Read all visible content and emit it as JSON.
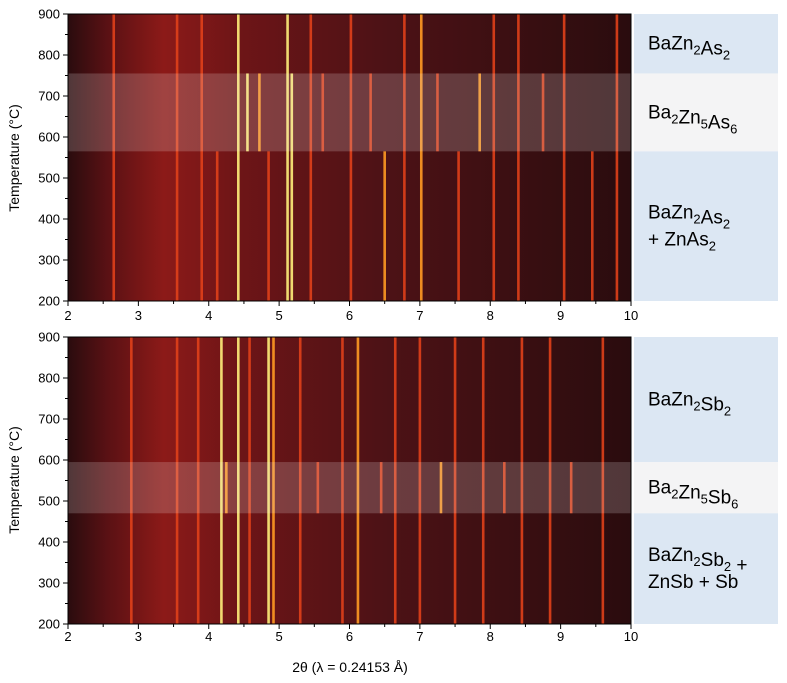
{
  "chart_data": [
    {
      "type": "heatmap",
      "xlabel": "",
      "ylabel": "Temperature (°C)",
      "xlim": [
        2,
        10
      ],
      "ylim": [
        200,
        900
      ],
      "x_ticks": [
        "2",
        "3",
        "4",
        "5",
        "6",
        "7",
        "8",
        "9",
        "10"
      ],
      "y_ticks": [
        "200",
        "300",
        "400",
        "500",
        "600",
        "700",
        "800",
        "900"
      ],
      "colormap": [
        "#2a0c0e",
        "#5a1114",
        "#9a1d14",
        "#e0401a",
        "#ff9a22",
        "#fff07a"
      ],
      "phase_regions": [
        {
          "phase_parts": [
            [
              "BaZn",
              ""
            ],
            [
              "2",
              "sub"
            ],
            [
              "As",
              ""
            ],
            [
              "2",
              "sub"
            ]
          ],
          "lines": 1,
          "t_range": [
            755,
            900
          ],
          "fill": "#dce7f3",
          "highlight": false
        },
        {
          "phase_parts": [
            [
              "Ba",
              ""
            ],
            [
              "2",
              "sub"
            ],
            [
              "Zn",
              ""
            ],
            [
              "5",
              "sub"
            ],
            [
              "As",
              ""
            ],
            [
              "6",
              "sub"
            ]
          ],
          "lines": 1,
          "t_range": [
            565,
            755
          ],
          "fill": "#f4f4f5",
          "highlight": true
        },
        {
          "phase_parts": [
            [
              "BaZn",
              ""
            ],
            [
              "2",
              "sub"
            ],
            [
              "As",
              ""
            ],
            [
              "2",
              "sub"
            ],
            [
              "\n",
              ""
            ],
            [
              "+ ZnAs",
              ""
            ],
            [
              "2",
              "sub"
            ]
          ],
          "lines": 2,
          "t_range": [
            200,
            565
          ],
          "fill": "#dce7f3",
          "highlight": false
        }
      ],
      "peaks": [
        {
          "x": 2.65,
          "t_range": [
            200,
            900
          ],
          "intensity": 0.35
        },
        {
          "x": 3.55,
          "t_range": [
            200,
            900
          ],
          "intensity": 0.3
        },
        {
          "x": 3.9,
          "t_range": [
            200,
            900
          ],
          "intensity": 0.35
        },
        {
          "x": 4.12,
          "t_range": [
            200,
            565
          ],
          "intensity": 0.4
        },
        {
          "x": 4.42,
          "t_range": [
            200,
            900
          ],
          "intensity": 1.0
        },
        {
          "x": 4.55,
          "t_range": [
            565,
            755
          ],
          "intensity": 0.85
        },
        {
          "x": 4.72,
          "t_range": [
            565,
            755
          ],
          "intensity": 0.8
        },
        {
          "x": 4.85,
          "t_range": [
            200,
            565
          ],
          "intensity": 0.45
        },
        {
          "x": 5.12,
          "t_range": [
            200,
            900
          ],
          "intensity": 0.95
        },
        {
          "x": 5.18,
          "t_range": [
            200,
            755
          ],
          "intensity": 0.85
        },
        {
          "x": 5.45,
          "t_range": [
            200,
            900
          ],
          "intensity": 0.35
        },
        {
          "x": 5.62,
          "t_range": [
            565,
            755
          ],
          "intensity": 0.4
        },
        {
          "x": 6.02,
          "t_range": [
            200,
            900
          ],
          "intensity": 0.45
        },
        {
          "x": 6.3,
          "t_range": [
            565,
            755
          ],
          "intensity": 0.4
        },
        {
          "x": 6.5,
          "t_range": [
            200,
            565
          ],
          "intensity": 0.55
        },
        {
          "x": 6.78,
          "t_range": [
            200,
            900
          ],
          "intensity": 0.4
        },
        {
          "x": 7.02,
          "t_range": [
            200,
            900
          ],
          "intensity": 0.5
        },
        {
          "x": 7.25,
          "t_range": [
            565,
            755
          ],
          "intensity": 0.45
        },
        {
          "x": 7.55,
          "t_range": [
            200,
            565
          ],
          "intensity": 0.4
        },
        {
          "x": 7.85,
          "t_range": [
            565,
            755
          ],
          "intensity": 0.6
        },
        {
          "x": 8.05,
          "t_range": [
            200,
            900
          ],
          "intensity": 0.4
        },
        {
          "x": 8.4,
          "t_range": [
            200,
            900
          ],
          "intensity": 0.35
        },
        {
          "x": 8.75,
          "t_range": [
            565,
            755
          ],
          "intensity": 0.35
        },
        {
          "x": 9.05,
          "t_range": [
            200,
            900
          ],
          "intensity": 0.35
        },
        {
          "x": 9.45,
          "t_range": [
            200,
            565
          ],
          "intensity": 0.3
        },
        {
          "x": 9.8,
          "t_range": [
            200,
            900
          ],
          "intensity": 0.3
        }
      ]
    },
    {
      "type": "heatmap",
      "xlabel": "2θ (λ = 0.24153 Å)",
      "ylabel": "Temperature (°C)",
      "xlim": [
        2,
        10
      ],
      "ylim": [
        200,
        900
      ],
      "x_ticks": [
        "2",
        "3",
        "4",
        "5",
        "6",
        "7",
        "8",
        "9",
        "10"
      ],
      "y_ticks": [
        "200",
        "300",
        "400",
        "500",
        "600",
        "700",
        "800",
        "900"
      ],
      "colormap": [
        "#2a0c0e",
        "#5a1114",
        "#9a1d14",
        "#e0401a",
        "#ff9a22",
        "#fff07a"
      ],
      "phase_regions": [
        {
          "phase_parts": [
            [
              "BaZn",
              ""
            ],
            [
              "2",
              "sub"
            ],
            [
              "Sb",
              ""
            ],
            [
              "2",
              "sub"
            ]
          ],
          "lines": 1,
          "t_range": [
            595,
            900
          ],
          "fill": "#dce7f3",
          "highlight": false
        },
        {
          "phase_parts": [
            [
              "Ba",
              ""
            ],
            [
              "2",
              "sub"
            ],
            [
              "Zn",
              ""
            ],
            [
              "5",
              "sub"
            ],
            [
              "Sb",
              ""
            ],
            [
              "6",
              "sub"
            ]
          ],
          "lines": 1,
          "t_range": [
            470,
            595
          ],
          "fill": "#f4f4f5",
          "highlight": true
        },
        {
          "phase_parts": [
            [
              "BaZn",
              ""
            ],
            [
              "2",
              "sub"
            ],
            [
              "Sb",
              ""
            ],
            [
              "2",
              "sub"
            ],
            [
              " +",
              ""
            ],
            [
              "\n",
              ""
            ],
            [
              "ZnSb + Sb",
              ""
            ]
          ],
          "lines": 2,
          "t_range": [
            200,
            470
          ],
          "fill": "#dce7f3",
          "highlight": false
        }
      ],
      "peaks": [
        {
          "x": 2.9,
          "t_range": [
            200,
            900
          ],
          "intensity": 0.3
        },
        {
          "x": 3.55,
          "t_range": [
            200,
            900
          ],
          "intensity": 0.35
        },
        {
          "x": 3.85,
          "t_range": [
            200,
            900
          ],
          "intensity": 0.3
        },
        {
          "x": 4.18,
          "t_range": [
            200,
            900
          ],
          "intensity": 0.9
        },
        {
          "x": 4.25,
          "t_range": [
            470,
            595
          ],
          "intensity": 0.8
        },
        {
          "x": 4.42,
          "t_range": [
            200,
            900
          ],
          "intensity": 0.95
        },
        {
          "x": 4.58,
          "t_range": [
            200,
            900
          ],
          "intensity": 0.45
        },
        {
          "x": 4.85,
          "t_range": [
            200,
            900
          ],
          "intensity": 0.95
        },
        {
          "x": 4.92,
          "t_range": [
            200,
            900
          ],
          "intensity": 0.8
        },
        {
          "x": 5.3,
          "t_range": [
            200,
            900
          ],
          "intensity": 0.4
        },
        {
          "x": 5.55,
          "t_range": [
            470,
            595
          ],
          "intensity": 0.45
        },
        {
          "x": 5.9,
          "t_range": [
            200,
            900
          ],
          "intensity": 0.35
        },
        {
          "x": 6.12,
          "t_range": [
            200,
            900
          ],
          "intensity": 0.5
        },
        {
          "x": 6.45,
          "t_range": [
            470,
            595
          ],
          "intensity": 0.45
        },
        {
          "x": 6.65,
          "t_range": [
            200,
            900
          ],
          "intensity": 0.45
        },
        {
          "x": 7.0,
          "t_range": [
            200,
            900
          ],
          "intensity": 0.4
        },
        {
          "x": 7.3,
          "t_range": [
            470,
            595
          ],
          "intensity": 0.5
        },
        {
          "x": 7.5,
          "t_range": [
            200,
            900
          ],
          "intensity": 0.35
        },
        {
          "x": 7.9,
          "t_range": [
            200,
            900
          ],
          "intensity": 0.35
        },
        {
          "x": 8.2,
          "t_range": [
            470,
            595
          ],
          "intensity": 0.35
        },
        {
          "x": 8.45,
          "t_range": [
            200,
            900
          ],
          "intensity": 0.3
        },
        {
          "x": 8.85,
          "t_range": [
            200,
            900
          ],
          "intensity": 0.3
        },
        {
          "x": 9.15,
          "t_range": [
            470,
            595
          ],
          "intensity": 0.3
        },
        {
          "x": 9.6,
          "t_range": [
            200,
            900
          ],
          "intensity": 0.3
        }
      ]
    }
  ]
}
